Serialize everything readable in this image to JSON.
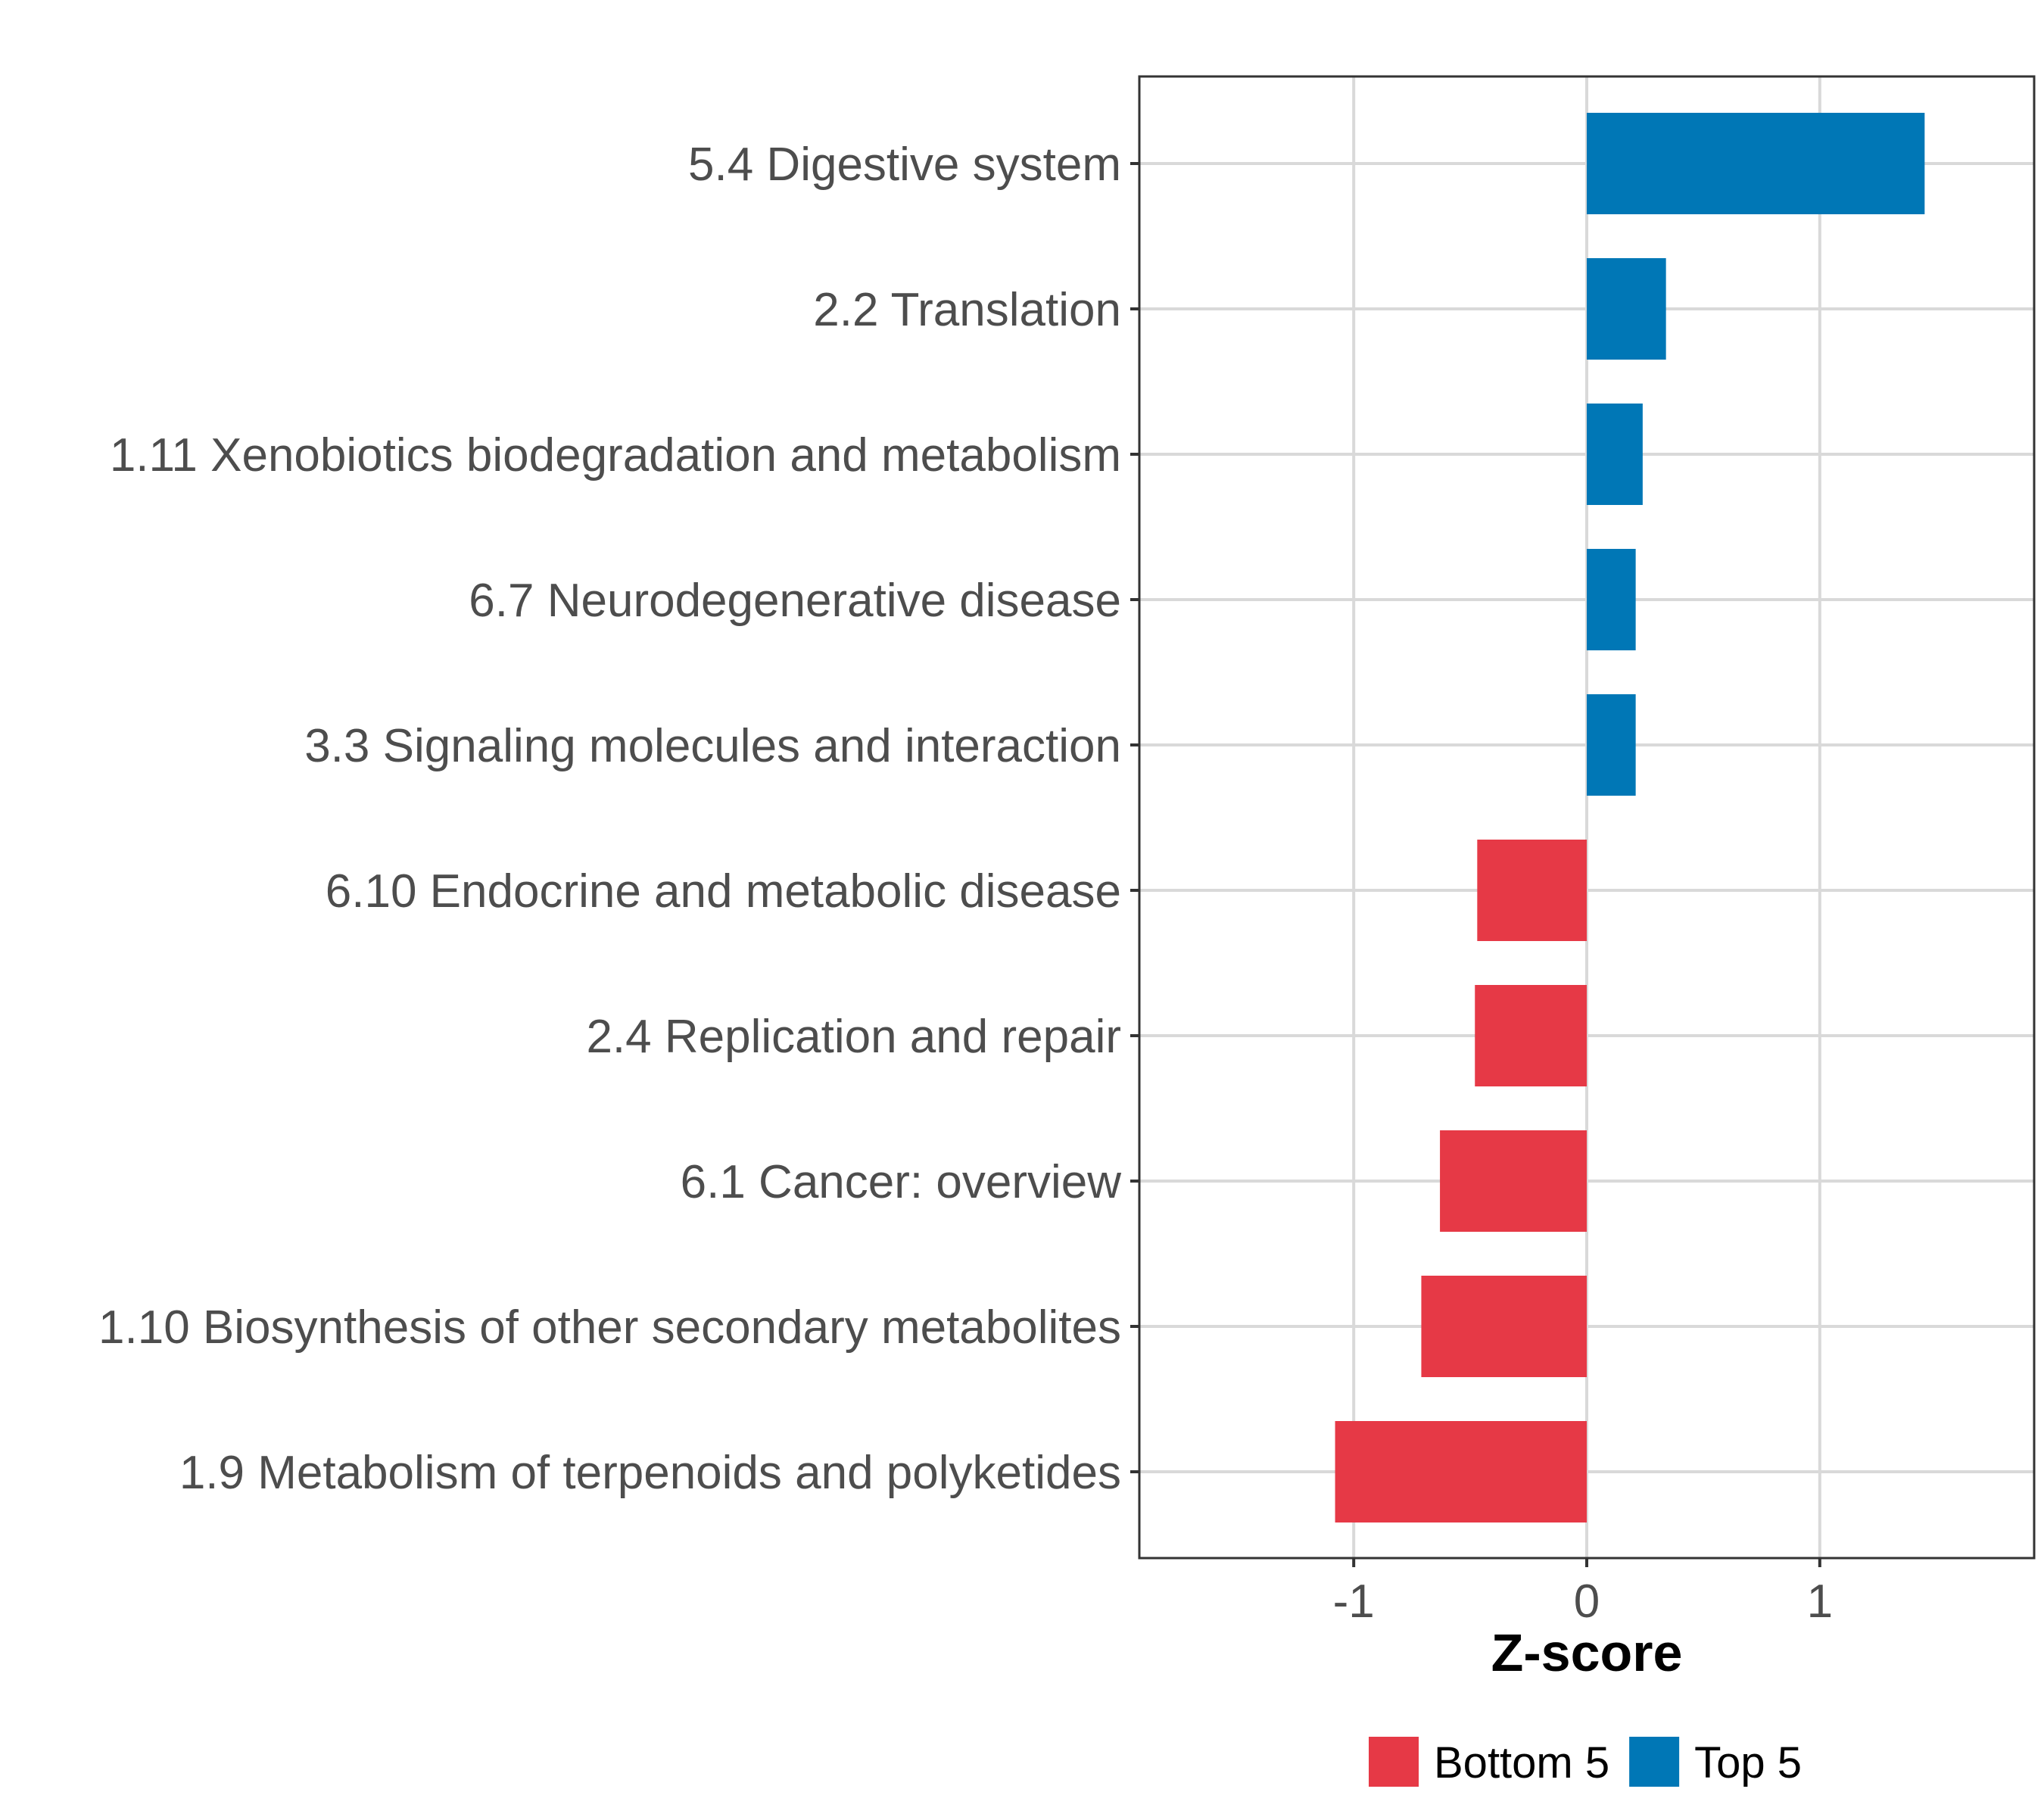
{
  "chart_data": {
    "type": "bar",
    "orientation": "horizontal",
    "categories": [
      "5.4 Digestive system",
      "2.2 Translation",
      "1.11 Xenobiotics biodegradation and metabolism",
      "6.7 Neurodegenerative disease",
      "3.3 Signaling molecules and interaction",
      "6.10 Endocrine and metabolic disease",
      "2.4 Replication and repair",
      "6.1 Cancer: overview",
      "1.10 Biosynthesis of other secondary metabolites",
      "1.9 Metabolism of terpenoids and polyketides"
    ],
    "values": [
      1.45,
      0.34,
      0.24,
      0.21,
      0.21,
      -0.47,
      -0.48,
      -0.63,
      -0.71,
      -1.08
    ],
    "groups": [
      "Top 5",
      "Top 5",
      "Top 5",
      "Top 5",
      "Top 5",
      "Bottom 5",
      "Bottom 5",
      "Bottom 5",
      "Bottom 5",
      "Bottom 5"
    ],
    "xlabel": "Z-score",
    "ylabel": "",
    "xlim": [
      -1.92,
      1.92
    ],
    "xticks": [
      -1,
      0,
      1
    ],
    "xtick_labels": [
      "-1",
      "0",
      "1"
    ],
    "grid": true,
    "legend": {
      "position": "bottom",
      "entries": [
        {
          "label": "Bottom 5",
          "color": "#E63946"
        },
        {
          "label": "Top 5",
          "color": "#0077B6"
        }
      ]
    },
    "colors": {
      "Top 5": "#0077B6",
      "Bottom 5": "#E63946"
    }
  }
}
